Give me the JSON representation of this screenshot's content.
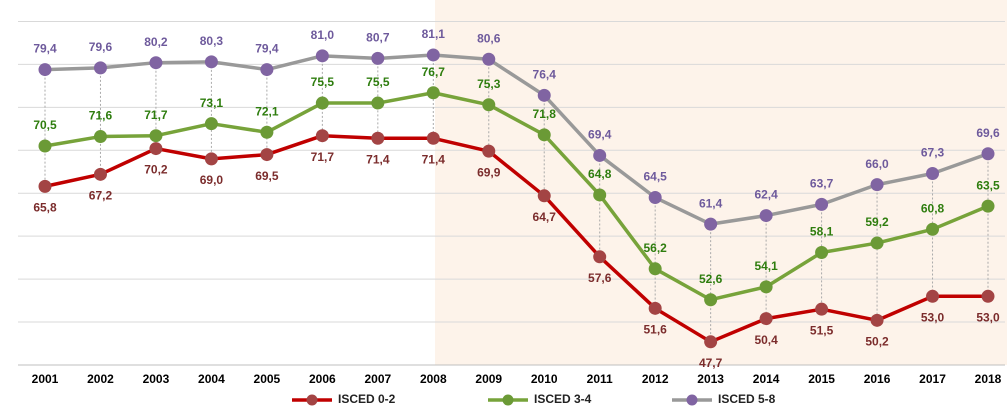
{
  "chart_data": {
    "type": "line",
    "categories": [
      "2001",
      "2002",
      "2003",
      "2004",
      "2005",
      "2006",
      "2007",
      "2008",
      "2009",
      "2010",
      "2011",
      "2012",
      "2013",
      "2014",
      "2015",
      "2016",
      "2017",
      "2018"
    ],
    "series": [
      {
        "name": "ISCED 0-2",
        "color": "#c00000",
        "marker_color": "#a34444",
        "label_color": "#7b2c2c",
        "label_position": "below",
        "values": [
          65.8,
          67.2,
          70.2,
          69.0,
          69.5,
          71.7,
          71.4,
          71.4,
          69.9,
          64.7,
          57.6,
          51.6,
          47.7,
          50.4,
          51.5,
          50.2,
          53.0,
          53.0
        ],
        "value_labels": [
          "65,8",
          "67,2",
          "70,2",
          "69,0",
          "69,5",
          "71,7",
          "71,4",
          "71,4",
          "69,9",
          "64,7",
          "57,6",
          "51,6",
          "47,7",
          "50,4",
          "51,5",
          "50,2",
          "53,0",
          "53,0"
        ]
      },
      {
        "name": "ISCED 3-4",
        "color": "#77a33a",
        "marker_color": "#6b9a36",
        "label_color": "#2e7d0e",
        "label_position": "above",
        "values": [
          70.5,
          71.6,
          71.7,
          73.1,
          72.1,
          75.5,
          75.5,
          76.7,
          75.3,
          71.8,
          64.8,
          56.2,
          52.6,
          54.1,
          58.1,
          59.2,
          60.8,
          63.5
        ],
        "value_labels": [
          "70,5",
          "71,6",
          "71,7",
          "73,1",
          "72,1",
          "75,5",
          "75,5",
          "76,7",
          "75,3",
          "71,8",
          "64,8",
          "56,2",
          "52,6",
          "54,1",
          "58,1",
          "59,2",
          "60,8",
          "63,5"
        ]
      },
      {
        "name": "ISCED 5-8",
        "color": "#999999",
        "marker_color": "#8064a2",
        "label_color": "#6e5a9c",
        "label_position": "above",
        "values": [
          79.4,
          79.6,
          80.2,
          80.3,
          79.4,
          81.0,
          80.7,
          81.1,
          80.6,
          76.4,
          69.4,
          64.5,
          61.4,
          62.4,
          63.7,
          66.0,
          67.3,
          69.6
        ],
        "value_labels": [
          "79,4",
          "79,6",
          "80,2",
          "80,3",
          "79,4",
          "81,0",
          "80,7",
          "81,1",
          "80,6",
          "76,4",
          "69,4",
          "64,5",
          "61,4",
          "62,4",
          "63,7",
          "66,0",
          "67,3",
          "69,6"
        ]
      }
    ],
    "ylim": [
      45,
      87.5
    ],
    "yticks": [
      50,
      55,
      60,
      65,
      70,
      75,
      80,
      85
    ],
    "grid": true,
    "legend": "bottom"
  }
}
